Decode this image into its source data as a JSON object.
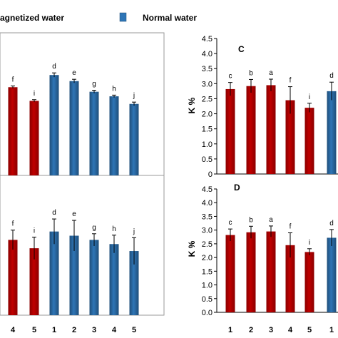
{
  "legend": {
    "magnetized_label": "agnetized water",
    "normal_label": "Normal water",
    "magnetized_color": "#c00000",
    "normal_color": "#2e75b6"
  },
  "chart_data": [
    {
      "type": "bar",
      "panel": "top-left (partially visible)",
      "categories": [
        "4",
        "5",
        "1",
        "2",
        "3",
        "4",
        "5"
      ],
      "series_by_bar": [
        "magnetized",
        "magnetized",
        "normal",
        "normal",
        "normal",
        "normal",
        "normal"
      ],
      "values": [
        2.9,
        2.45,
        3.3,
        3.1,
        2.75,
        2.6,
        2.35
      ],
      "errors": [
        0.04,
        0.04,
        0.07,
        0.06,
        0.05,
        0.04,
        0.06
      ],
      "bar_labels": [
        "f",
        "i",
        "d",
        "e",
        "g",
        "h",
        "j"
      ],
      "ylim": [
        0,
        4.5
      ]
    },
    {
      "type": "bar",
      "panel": "bottom-left (partially visible)",
      "categories": [
        "4",
        "5",
        "1",
        "2",
        "3",
        "4",
        "5"
      ],
      "series_by_bar": [
        "magnetized",
        "magnetized",
        "normal",
        "normal",
        "normal",
        "normal",
        "normal"
      ],
      "values": [
        2.7,
        2.4,
        3.0,
        2.85,
        2.7,
        2.55,
        2.3
      ],
      "errors": [
        0.35,
        0.4,
        0.45,
        0.55,
        0.22,
        0.32,
        0.48
      ],
      "bar_labels": [
        "f",
        "i",
        "d",
        "e",
        "g",
        "h",
        "j"
      ],
      "ylim": [
        0,
        4.5
      ]
    },
    {
      "type": "bar",
      "panel": "C",
      "categories": [
        "1",
        "2",
        "3",
        "4",
        "5",
        "1"
      ],
      "series_by_bar": [
        "magnetized",
        "magnetized",
        "magnetized",
        "magnetized",
        "magnetized",
        "normal"
      ],
      "values": [
        2.82,
        2.92,
        2.95,
        2.45,
        2.2,
        2.75
      ],
      "errors": [
        0.22,
        0.22,
        0.2,
        0.45,
        0.15,
        0.3
      ],
      "bar_labels": [
        "c",
        "b",
        "a",
        "f",
        "i",
        "d"
      ],
      "ylabel": "K %",
      "ylim": [
        0,
        4.5
      ],
      "yticks": [
        "0",
        "0.5",
        "1.0",
        "1.5",
        "2.0",
        "2.5",
        "3.0",
        "3.5",
        "4.0",
        "4.5"
      ]
    },
    {
      "type": "bar",
      "panel": "D",
      "categories": [
        "1",
        "2",
        "3",
        "4",
        "5",
        "1"
      ],
      "series_by_bar": [
        "magnetized",
        "magnetized",
        "magnetized",
        "magnetized",
        "magnetized",
        "normal"
      ],
      "values": [
        2.82,
        2.92,
        2.95,
        2.45,
        2.2,
        2.72
      ],
      "errors": [
        0.22,
        0.22,
        0.2,
        0.45,
        0.12,
        0.3
      ],
      "bar_labels": [
        "c",
        "b",
        "a",
        "f",
        "i",
        "d"
      ],
      "ylabel": "K %",
      "ylim": [
        0,
        4.5
      ],
      "yticks": [
        "0.0",
        "0.5",
        "1.0",
        "1.5",
        "2.0",
        "2.5",
        "3.0",
        "3.5",
        "4.0",
        "4.5"
      ]
    }
  ],
  "panels": {
    "c_letter": "C",
    "d_letter": "D"
  }
}
